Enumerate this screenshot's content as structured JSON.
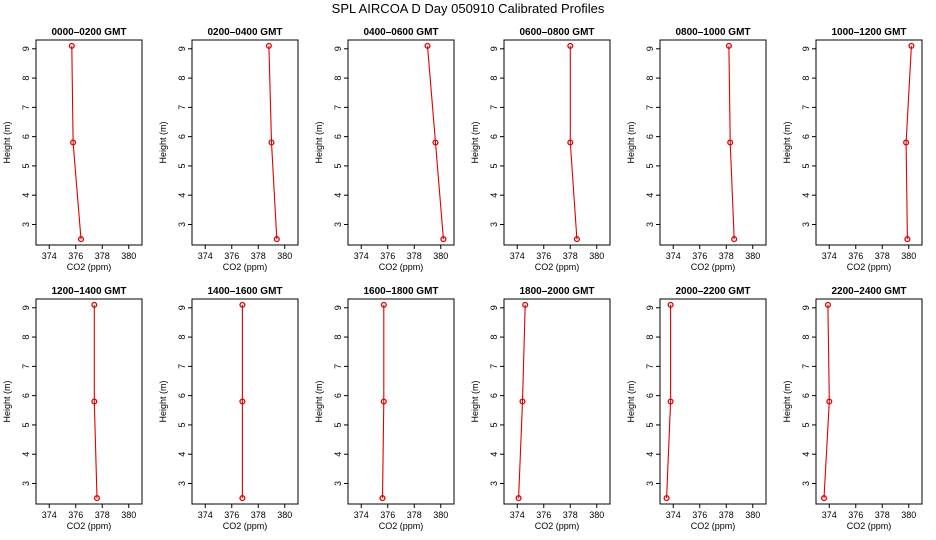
{
  "chart_data": {
    "type": "line",
    "title": "SPL AIRCOA D  Day 050910  Calibrated Profiles",
    "xlabel": "CO2 (ppm)",
    "ylabel": "Height (m)",
    "xlim": [
      373,
      381
    ],
    "ylim": [
      2.3,
      9.3
    ],
    "xticks": [
      374,
      376,
      378,
      380
    ],
    "yticks": [
      3,
      4,
      5,
      6,
      7,
      8,
      9
    ],
    "grid": false,
    "series_color": "#e00000",
    "panels": [
      {
        "name": "0000–0200 GMT",
        "x": [
          376.4,
          375.8,
          375.7
        ],
        "y": [
          2.5,
          5.8,
          9.1
        ]
      },
      {
        "name": "0200–0400 GMT",
        "x": [
          379.4,
          379.0,
          378.8
        ],
        "y": [
          2.5,
          5.8,
          9.1
        ]
      },
      {
        "name": "0400–0600 GMT",
        "x": [
          380.2,
          379.6,
          379.0
        ],
        "y": [
          2.5,
          5.8,
          9.1
        ]
      },
      {
        "name": "0600–0800 GMT",
        "x": [
          378.5,
          378.0,
          378.0
        ],
        "y": [
          2.5,
          5.8,
          9.1
        ]
      },
      {
        "name": "0800–1000 GMT",
        "x": [
          378.6,
          378.3,
          378.2
        ],
        "y": [
          2.5,
          5.8,
          9.1
        ]
      },
      {
        "name": "1000–1200 GMT",
        "x": [
          379.9,
          379.8,
          380.2
        ],
        "y": [
          2.5,
          5.8,
          9.1
        ]
      },
      {
        "name": "1200–1400 GMT",
        "x": [
          377.6,
          377.4,
          377.4
        ],
        "y": [
          2.5,
          5.8,
          9.1
        ]
      },
      {
        "name": "1400–1600 GMT",
        "x": [
          376.8,
          376.8,
          376.8
        ],
        "y": [
          2.5,
          5.8,
          9.1
        ]
      },
      {
        "name": "1600–1800 GMT",
        "x": [
          375.6,
          375.7,
          375.7
        ],
        "y": [
          2.5,
          5.8,
          9.1
        ]
      },
      {
        "name": "1800–2000 GMT",
        "x": [
          374.1,
          374.4,
          374.6
        ],
        "y": [
          2.5,
          5.8,
          9.1
        ]
      },
      {
        "name": "2000–2200 GMT",
        "x": [
          373.5,
          373.8,
          373.8
        ],
        "y": [
          2.5,
          5.8,
          9.1
        ]
      },
      {
        "name": "2200–2400 GMT",
        "x": [
          373.6,
          374.0,
          373.9
        ],
        "y": [
          2.5,
          5.8,
          9.1
        ]
      }
    ]
  }
}
